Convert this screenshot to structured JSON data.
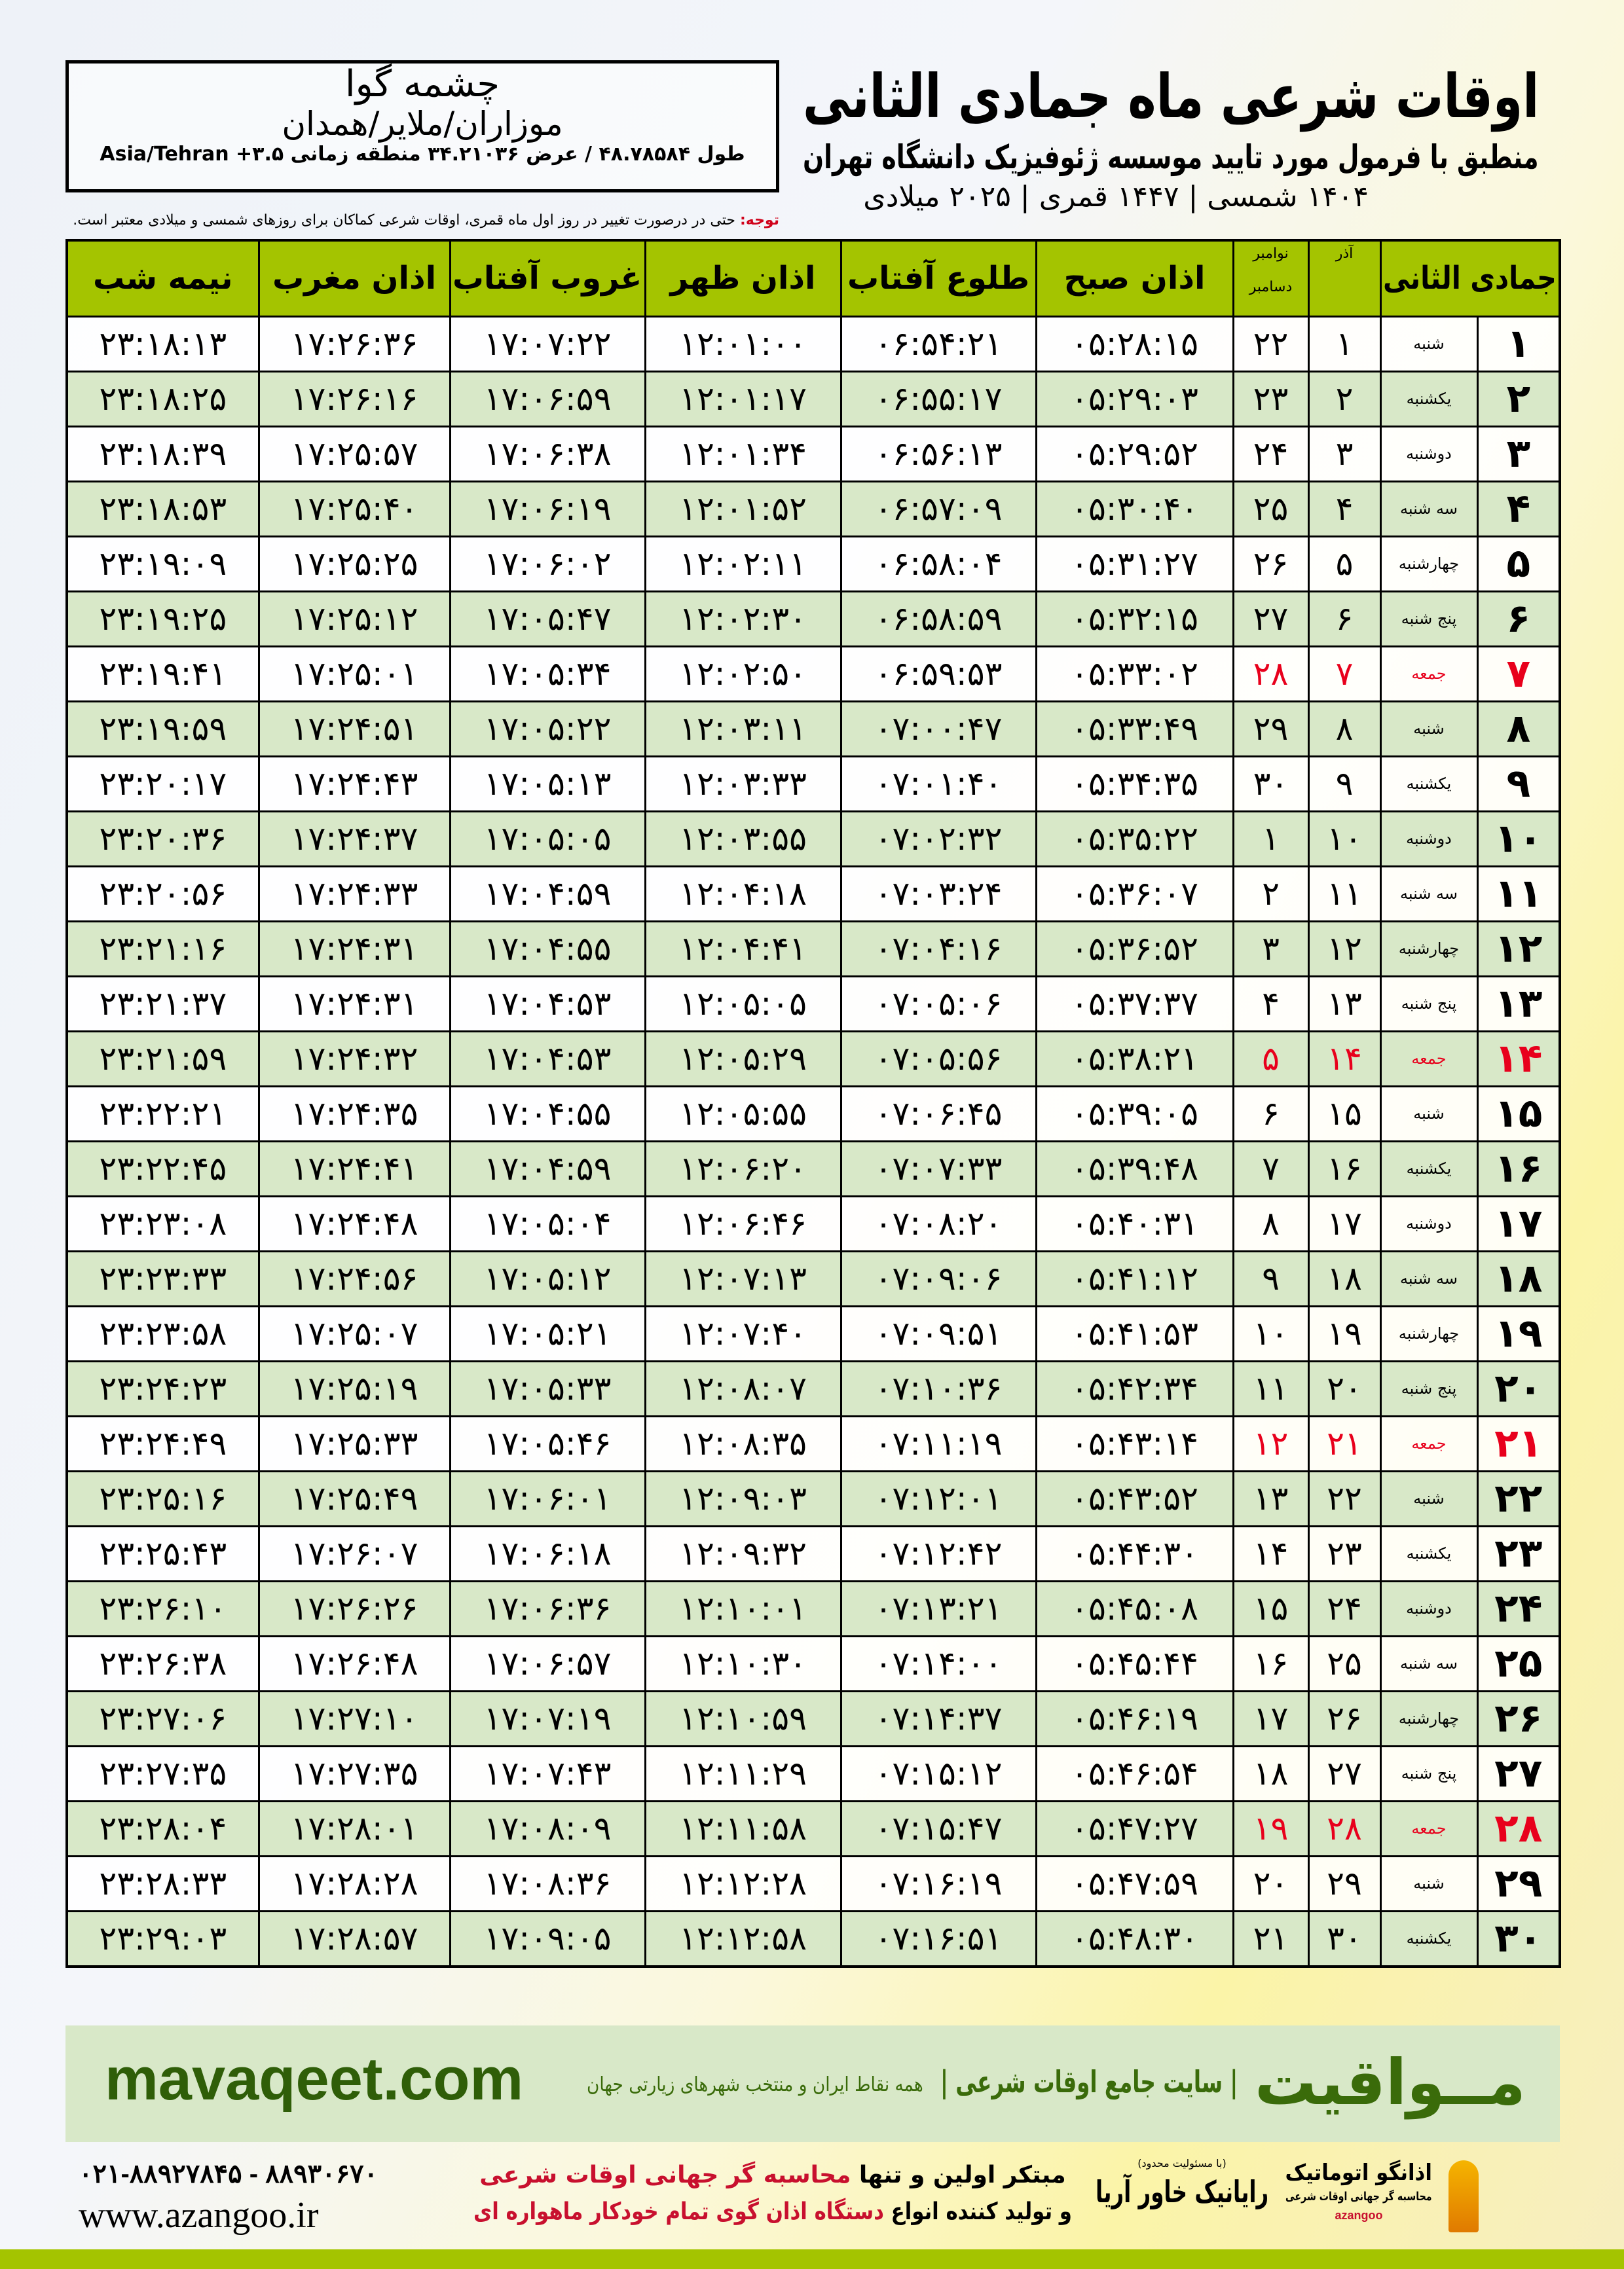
{
  "header": {
    "title": "اوقات شرعی ماه جمادی الثانی",
    "subtitle": "منطبق با فرمول مورد تایید موسسه ژئوفیزیک دانشگاه تهران",
    "years": "۱۴۰۴ شمسی | ۱۴۴۷ قمری | ۲۰۲۵ میلادی"
  },
  "location": {
    "name": "چشمه گوا",
    "region": "موزاران/ملایر/همدان",
    "coords": "طول ۴۸.۷۸۵۸۴ / عرض ۳۴.۲۱۰۳۶ منطقه زمانی ۳.۵+ Asia/Tehran"
  },
  "note": {
    "label": "توجه:",
    "text": " حتی در درصورت تغییر در روز اول ماه قمری، اوقات شرعی کماکان برای روزهای شمسی و میلادی معتبر است."
  },
  "table": {
    "headers": {
      "hijri": "جمادی الثانی",
      "azar": "آذر",
      "greg_top": "نوامبر",
      "greg_bottom": "دسامبر",
      "fajr": "اذان صبح",
      "sunrise": "طلوع آفتاب",
      "dhuhr": "اذان ظهر",
      "sunset": "غروب آفتاب",
      "maghrib": "اذان مغرب",
      "midnight": "نیمه شب"
    },
    "rows": [
      [
        "۱",
        "شنبه",
        "۱",
        "۲۲",
        "۰۵:۲۸:۱۵",
        "۰۶:۵۴:۲۱",
        "۱۲:۰۱:۰۰",
        "۱۷:۰۷:۲۲",
        "۱۷:۲۶:۳۶",
        "۲۳:۱۸:۱۳"
      ],
      [
        "۲",
        "یکشنبه",
        "۲",
        "۲۳",
        "۰۵:۲۹:۰۳",
        "۰۶:۵۵:۱۷",
        "۱۲:۰۱:۱۷",
        "۱۷:۰۶:۵۹",
        "۱۷:۲۶:۱۶",
        "۲۳:۱۸:۲۵"
      ],
      [
        "۳",
        "دوشنبه",
        "۳",
        "۲۴",
        "۰۵:۲۹:۵۲",
        "۰۶:۵۶:۱۳",
        "۱۲:۰۱:۳۴",
        "۱۷:۰۶:۳۸",
        "۱۷:۲۵:۵۷",
        "۲۳:۱۸:۳۹"
      ],
      [
        "۴",
        "سه شنبه",
        "۴",
        "۲۵",
        "۰۵:۳۰:۴۰",
        "۰۶:۵۷:۰۹",
        "۱۲:۰۱:۵۲",
        "۱۷:۰۶:۱۹",
        "۱۷:۲۵:۴۰",
        "۲۳:۱۸:۵۳"
      ],
      [
        "۵",
        "چهارشنبه",
        "۵",
        "۲۶",
        "۰۵:۳۱:۲۷",
        "۰۶:۵۸:۰۴",
        "۱۲:۰۲:۱۱",
        "۱۷:۰۶:۰۲",
        "۱۷:۲۵:۲۵",
        "۲۳:۱۹:۰۹"
      ],
      [
        "۶",
        "پنج شنبه",
        "۶",
        "۲۷",
        "۰۵:۳۲:۱۵",
        "۰۶:۵۸:۵۹",
        "۱۲:۰۲:۳۰",
        "۱۷:۰۵:۴۷",
        "۱۷:۲۵:۱۲",
        "۲۳:۱۹:۲۵"
      ],
      [
        "۷",
        "جمعه",
        "۷",
        "۲۸",
        "۰۵:۳۳:۰۲",
        "۰۶:۵۹:۵۳",
        "۱۲:۰۲:۵۰",
        "۱۷:۰۵:۳۴",
        "۱۷:۲۵:۰۱",
        "۲۳:۱۹:۴۱"
      ],
      [
        "۸",
        "شنبه",
        "۸",
        "۲۹",
        "۰۵:۳۳:۴۹",
        "۰۷:۰۰:۴۷",
        "۱۲:۰۳:۱۱",
        "۱۷:۰۵:۲۲",
        "۱۷:۲۴:۵۱",
        "۲۳:۱۹:۵۹"
      ],
      [
        "۹",
        "یکشنبه",
        "۹",
        "۳۰",
        "۰۵:۳۴:۳۵",
        "۰۷:۰۱:۴۰",
        "۱۲:۰۳:۳۳",
        "۱۷:۰۵:۱۳",
        "۱۷:۲۴:۴۳",
        "۲۳:۲۰:۱۷"
      ],
      [
        "۱۰",
        "دوشنبه",
        "۱۰",
        "۱",
        "۰۵:۳۵:۲۲",
        "۰۷:۰۲:۳۲",
        "۱۲:۰۳:۵۵",
        "۱۷:۰۵:۰۵",
        "۱۷:۲۴:۳۷",
        "۲۳:۲۰:۳۶"
      ],
      [
        "۱۱",
        "سه شنبه",
        "۱۱",
        "۲",
        "۰۵:۳۶:۰۷",
        "۰۷:۰۳:۲۴",
        "۱۲:۰۴:۱۸",
        "۱۷:۰۴:۵۹",
        "۱۷:۲۴:۳۳",
        "۲۳:۲۰:۵۶"
      ],
      [
        "۱۲",
        "چهارشنبه",
        "۱۲",
        "۳",
        "۰۵:۳۶:۵۲",
        "۰۷:۰۴:۱۶",
        "۱۲:۰۴:۴۱",
        "۱۷:۰۴:۵۵",
        "۱۷:۲۴:۳۱",
        "۲۳:۲۱:۱۶"
      ],
      [
        "۱۳",
        "پنج شنبه",
        "۱۳",
        "۴",
        "۰۵:۳۷:۳۷",
        "۰۷:۰۵:۰۶",
        "۱۲:۰۵:۰۵",
        "۱۷:۰۴:۵۳",
        "۱۷:۲۴:۳۱",
        "۲۳:۲۱:۳۷"
      ],
      [
        "۱۴",
        "جمعه",
        "۱۴",
        "۵",
        "۰۵:۳۸:۲۱",
        "۰۷:۰۵:۵۶",
        "۱۲:۰۵:۲۹",
        "۱۷:۰۴:۵۳",
        "۱۷:۲۴:۳۲",
        "۲۳:۲۱:۵۹"
      ],
      [
        "۱۵",
        "شنبه",
        "۱۵",
        "۶",
        "۰۵:۳۹:۰۵",
        "۰۷:۰۶:۴۵",
        "۱۲:۰۵:۵۵",
        "۱۷:۰۴:۵۵",
        "۱۷:۲۴:۳۵",
        "۲۳:۲۲:۲۱"
      ],
      [
        "۱۶",
        "یکشنبه",
        "۱۶",
        "۷",
        "۰۵:۳۹:۴۸",
        "۰۷:۰۷:۳۳",
        "۱۲:۰۶:۲۰",
        "۱۷:۰۴:۵۹",
        "۱۷:۲۴:۴۱",
        "۲۳:۲۲:۴۵"
      ],
      [
        "۱۷",
        "دوشنبه",
        "۱۷",
        "۸",
        "۰۵:۴۰:۳۱",
        "۰۷:۰۸:۲۰",
        "۱۲:۰۶:۴۶",
        "۱۷:۰۵:۰۴",
        "۱۷:۲۴:۴۸",
        "۲۳:۲۳:۰۸"
      ],
      [
        "۱۸",
        "سه شنبه",
        "۱۸",
        "۹",
        "۰۵:۴۱:۱۲",
        "۰۷:۰۹:۰۶",
        "۱۲:۰۷:۱۳",
        "۱۷:۰۵:۱۲",
        "۱۷:۲۴:۵۶",
        "۲۳:۲۳:۳۳"
      ],
      [
        "۱۹",
        "چهارشنبه",
        "۱۹",
        "۱۰",
        "۰۵:۴۱:۵۳",
        "۰۷:۰۹:۵۱",
        "۱۲:۰۷:۴۰",
        "۱۷:۰۵:۲۱",
        "۱۷:۲۵:۰۷",
        "۲۳:۲۳:۵۸"
      ],
      [
        "۲۰",
        "پنج شنبه",
        "۲۰",
        "۱۱",
        "۰۵:۴۲:۳۴",
        "۰۷:۱۰:۳۶",
        "۱۲:۰۸:۰۷",
        "۱۷:۰۵:۳۳",
        "۱۷:۲۵:۱۹",
        "۲۳:۲۴:۲۳"
      ],
      [
        "۲۱",
        "جمعه",
        "۲۱",
        "۱۲",
        "۰۵:۴۳:۱۴",
        "۰۷:۱۱:۱۹",
        "۱۲:۰۸:۳۵",
        "۱۷:۰۵:۴۶",
        "۱۷:۲۵:۳۳",
        "۲۳:۲۴:۴۹"
      ],
      [
        "۲۲",
        "شنبه",
        "۲۲",
        "۱۳",
        "۰۵:۴۳:۵۲",
        "۰۷:۱۲:۰۱",
        "۱۲:۰۹:۰۳",
        "۱۷:۰۶:۰۱",
        "۱۷:۲۵:۴۹",
        "۲۳:۲۵:۱۶"
      ],
      [
        "۲۳",
        "یکشنبه",
        "۲۳",
        "۱۴",
        "۰۵:۴۴:۳۰",
        "۰۷:۱۲:۴۲",
        "۱۲:۰۹:۳۲",
        "۱۷:۰۶:۱۸",
        "۱۷:۲۶:۰۷",
        "۲۳:۲۵:۴۳"
      ],
      [
        "۲۴",
        "دوشنبه",
        "۲۴",
        "۱۵",
        "۰۵:۴۵:۰۸",
        "۰۷:۱۳:۲۱",
        "۱۲:۱۰:۰۱",
        "۱۷:۰۶:۳۶",
        "۱۷:۲۶:۲۶",
        "۲۳:۲۶:۱۰"
      ],
      [
        "۲۵",
        "سه شنبه",
        "۲۵",
        "۱۶",
        "۰۵:۴۵:۴۴",
        "۰۷:۱۴:۰۰",
        "۱۲:۱۰:۳۰",
        "۱۷:۰۶:۵۷",
        "۱۷:۲۶:۴۸",
        "۲۳:۲۶:۳۸"
      ],
      [
        "۲۶",
        "چهارشنبه",
        "۲۶",
        "۱۷",
        "۰۵:۴۶:۱۹",
        "۰۷:۱۴:۳۷",
        "۱۲:۱۰:۵۹",
        "۱۷:۰۷:۱۹",
        "۱۷:۲۷:۱۰",
        "۲۳:۲۷:۰۶"
      ],
      [
        "۲۷",
        "پنج شنبه",
        "۲۷",
        "۱۸",
        "۰۵:۴۶:۵۴",
        "۰۷:۱۵:۱۲",
        "۱۲:۱۱:۲۹",
        "۱۷:۰۷:۴۳",
        "۱۷:۲۷:۳۵",
        "۲۳:۲۷:۳۵"
      ],
      [
        "۲۸",
        "جمعه",
        "۲۸",
        "۱۹",
        "۰۵:۴۷:۲۷",
        "۰۷:۱۵:۴۷",
        "۱۲:۱۱:۵۸",
        "۱۷:۰۸:۰۹",
        "۱۷:۲۸:۰۱",
        "۲۳:۲۸:۰۴"
      ],
      [
        "۲۹",
        "شنبه",
        "۲۹",
        "۲۰",
        "۰۵:۴۷:۵۹",
        "۰۷:۱۶:۱۹",
        "۱۲:۱۲:۲۸",
        "۱۷:۰۸:۳۶",
        "۱۷:۲۸:۲۸",
        "۲۳:۲۸:۳۳"
      ],
      [
        "۳۰",
        "یکشنبه",
        "۳۰",
        "۲۱",
        "۰۵:۴۸:۳۰",
        "۰۷:۱۶:۵۱",
        "۱۲:۱۲:۵۸",
        "۱۷:۰۹:۰۵",
        "۱۷:۲۸:۵۷",
        "۲۳:۲۹:۰۳"
      ]
    ],
    "friday_label": "جمعه"
  },
  "footer": {
    "mavaqeet_logo": "مــواقیت",
    "mavaqeet_tagline": "| سایت جامع اوقات شرعی |",
    "mavaqeet_sub": "همه نقاط ایران و منتخب شهرهای زیارتی جهان",
    "mavaqeet_url": "mavaqeet.com",
    "phone": "۰۲۱-۸۸۹۲۷۸۴۵ - ۸۸۹۳۰۶۷۰",
    "azangoo_url": "www.azangoo.ir",
    "promo_line1_a": "مبتکر اولین و تنها ",
    "promo_line1_b": "محاسبه گر جهانی اوقات شرعی",
    "promo_line2_a": "و تولید کننده انواع ",
    "promo_line2_b": "دستگاه اذان گوی تمام خودکار ماهواره ای",
    "rayanik_small": "(با مسئولیت محدود)",
    "rayanik": "رایانیک خاور آریا",
    "azangoo_logo": "اذانگو اتوماتیک",
    "azangoo_logo_sub": "محاسبه گر جهانی اوقات شرعی",
    "azangoo_brand": "azangoo"
  },
  "colors": {
    "header_green": "#a4c400",
    "row_green": "#d8e8c8",
    "friday_red": "#e8001c",
    "brand_green": "#3a6b0a"
  }
}
